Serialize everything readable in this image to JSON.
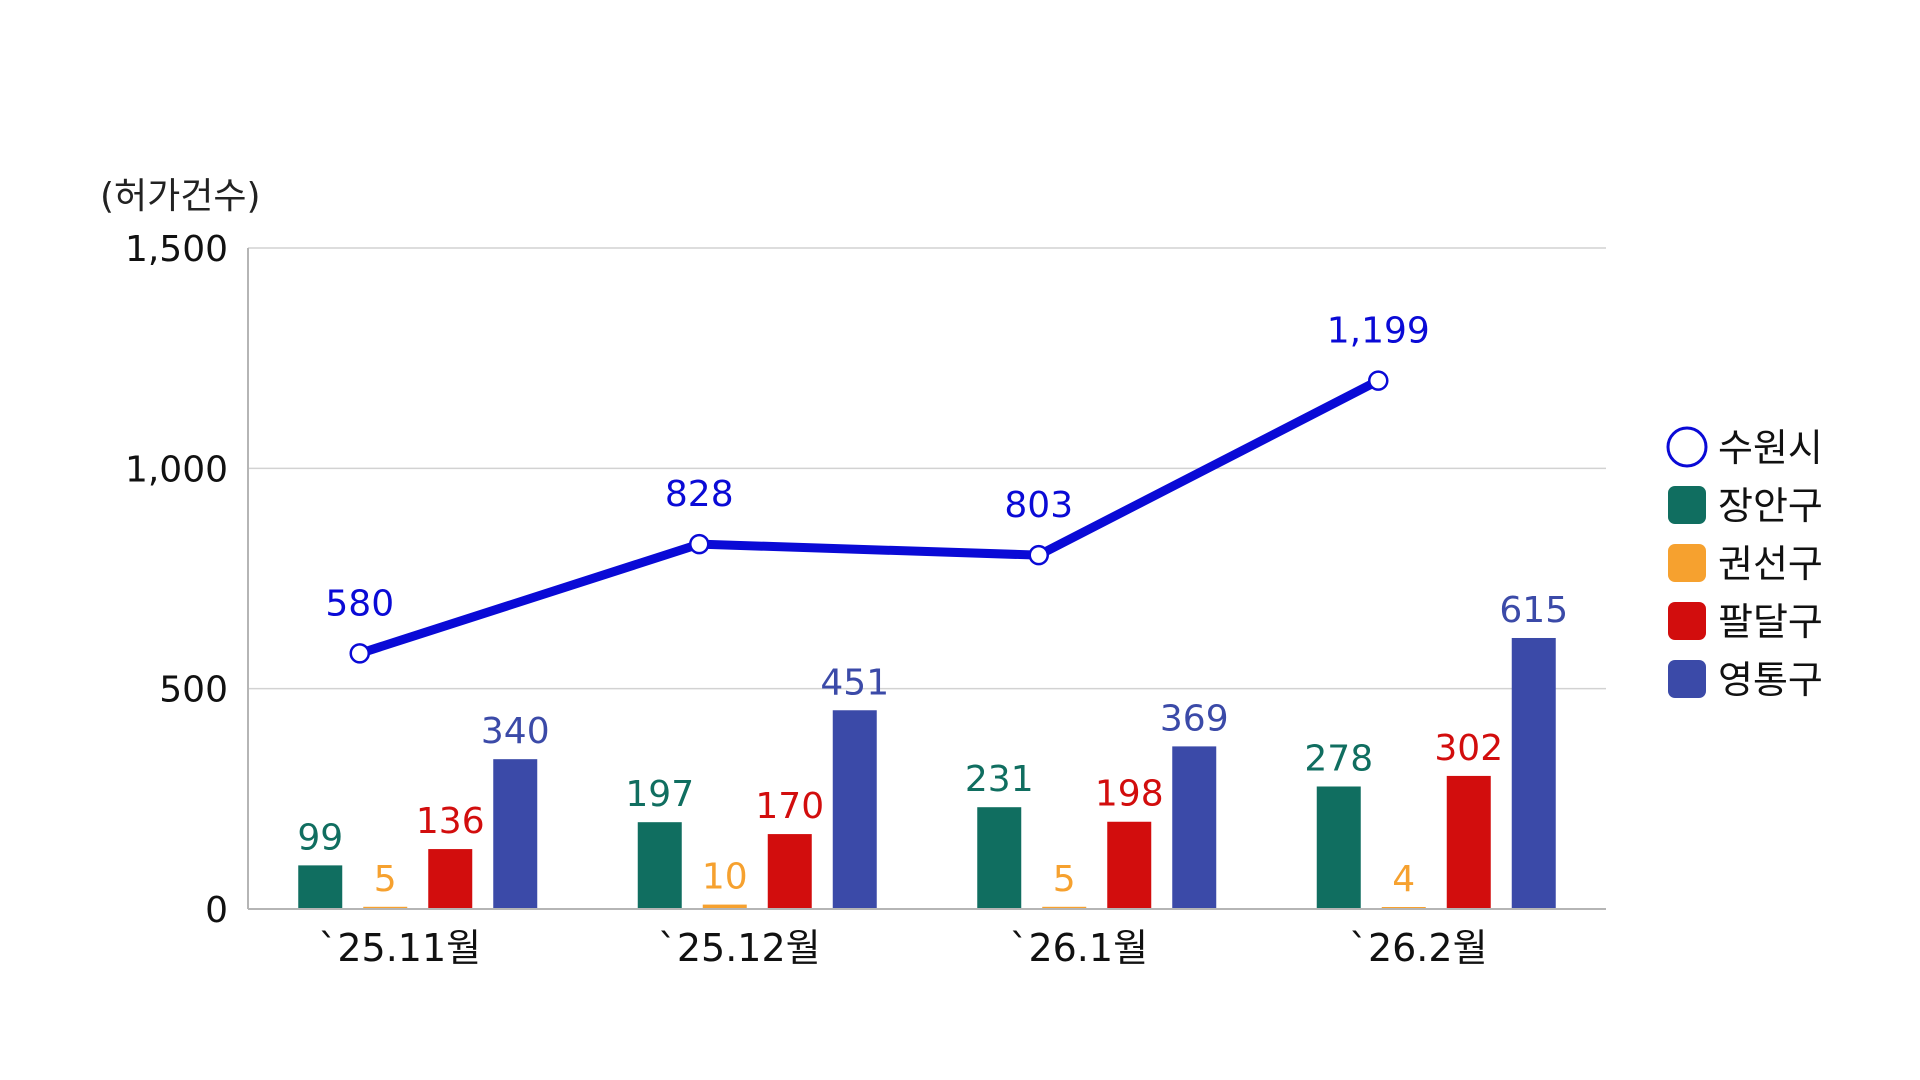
{
  "chart_data": {
    "type": "bar+line",
    "unit_label": "(허가건수)",
    "categories": [
      "`25.11월",
      "`25.12월",
      "`26.1월",
      "`26.2월"
    ],
    "y_ticks": [
      "0",
      "500",
      "1,000",
      "1,500"
    ],
    "ylim": [
      0,
      1500
    ],
    "grid": true,
    "legend_position": "right",
    "line_series": {
      "name": "수원시",
      "color": "#0a0ad6",
      "values": [
        580,
        828,
        803,
        1199
      ],
      "labels": [
        "580",
        "828",
        "803",
        "1,199"
      ]
    },
    "bar_series": [
      {
        "name": "장안구",
        "color": "#106e60",
        "values": [
          99,
          197,
          231,
          278
        ],
        "labels": [
          "99",
          "197",
          "231",
          "278"
        ]
      },
      {
        "name": "권선구",
        "color": "#f6a12f",
        "values": [
          5,
          10,
          5,
          4
        ],
        "labels": [
          "5",
          "10",
          "5",
          "4"
        ]
      },
      {
        "name": "팔달구",
        "color": "#d20d0d",
        "values": [
          136,
          170,
          198,
          302
        ],
        "labels": [
          "136",
          "170",
          "198",
          "302"
        ]
      },
      {
        "name": "영통구",
        "color": "#3b4aa8",
        "values": [
          340,
          451,
          369,
          615
        ],
        "labels": [
          "340",
          "451",
          "369",
          "615"
        ]
      }
    ]
  }
}
